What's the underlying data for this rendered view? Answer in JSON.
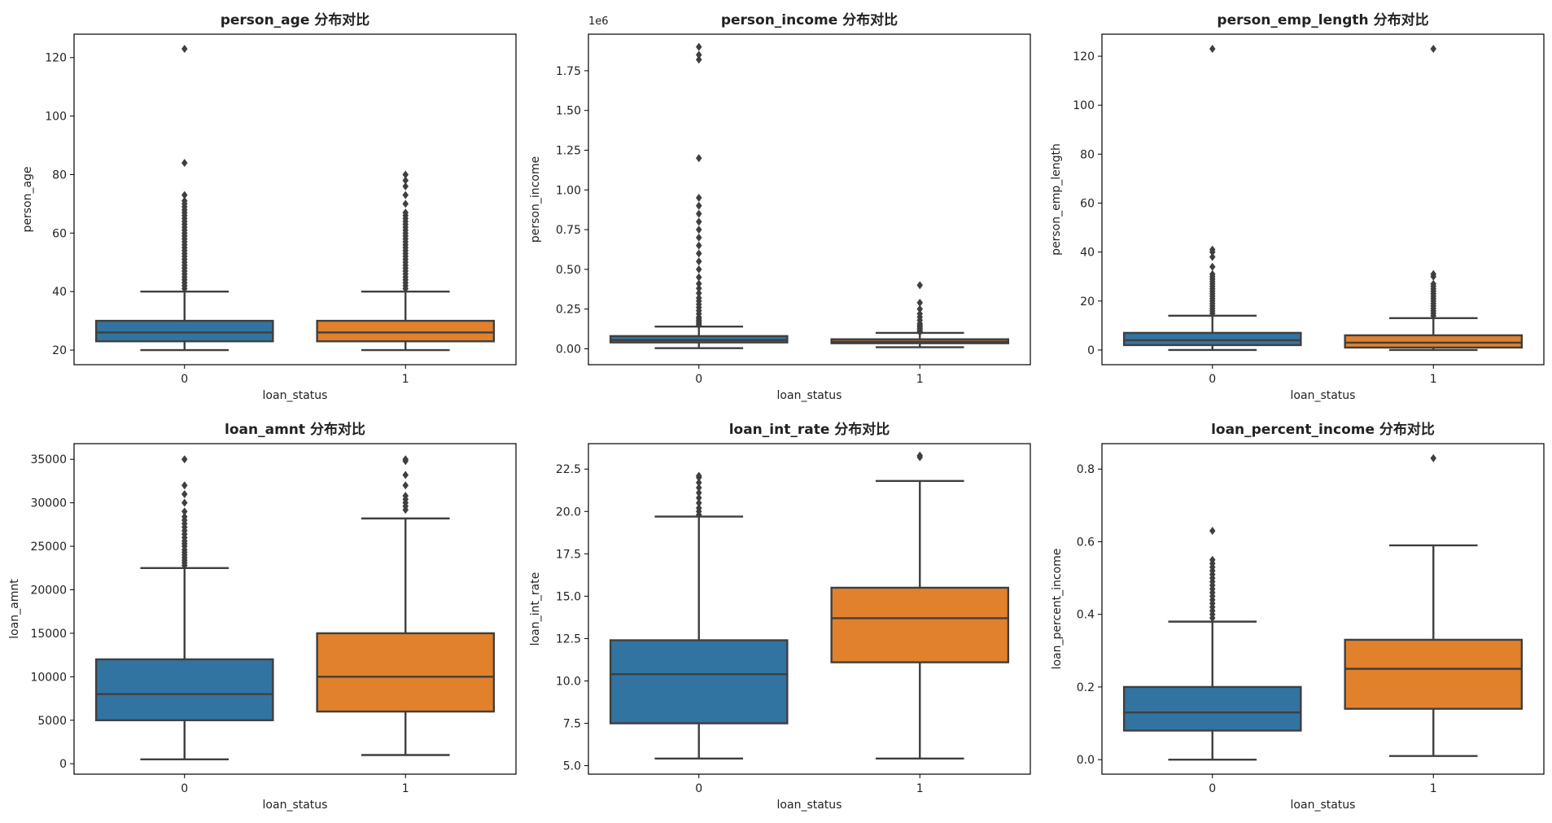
{
  "figure": {
    "colors": {
      "status_0": "#3274a1",
      "status_1": "#e1812c",
      "line": "#3f3f3f"
    }
  },
  "chart_data": [
    {
      "type": "box",
      "title": "person_age 分布对比",
      "xlabel": "loan_status",
      "ylabel": "person_age",
      "categories": [
        "0",
        "1"
      ],
      "ylim": [
        15,
        128
      ],
      "yticks": [
        20,
        40,
        60,
        80,
        100,
        120
      ],
      "ytick_labels": [
        "20",
        "40",
        "60",
        "80",
        "100",
        "120"
      ],
      "offset_label": "",
      "boxes": [
        {
          "whisker_low": 20,
          "q1": 23,
          "median": 26,
          "q3": 30,
          "whisker_high": 40,
          "outliers": [
            41,
            42,
            43,
            44,
            45,
            46,
            47,
            48,
            49,
            50,
            51,
            52,
            53,
            54,
            55,
            56,
            57,
            58,
            59,
            60,
            61,
            62,
            63,
            64,
            65,
            66,
            67,
            68,
            69,
            70,
            71,
            73,
            84,
            123
          ]
        },
        {
          "whisker_low": 20,
          "q1": 23,
          "median": 26,
          "q3": 30,
          "whisker_high": 40,
          "outliers": [
            41,
            42,
            43,
            44,
            45,
            46,
            47,
            48,
            49,
            50,
            51,
            52,
            53,
            54,
            55,
            56,
            57,
            58,
            59,
            60,
            61,
            62,
            63,
            64,
            65,
            66,
            67,
            70,
            73,
            76,
            78,
            80
          ]
        }
      ]
    },
    {
      "type": "box",
      "title": "person_income 分布对比",
      "xlabel": "loan_status",
      "ylabel": "person_income",
      "categories": [
        "0",
        "1"
      ],
      "ylim": [
        -0.1,
        1.98
      ],
      "yticks": [
        0,
        0.25,
        0.5,
        0.75,
        1.0,
        1.25,
        1.5,
        1.75
      ],
      "ytick_labels": [
        "0.00",
        "0.25",
        "0.50",
        "0.75",
        "1.00",
        "1.25",
        "1.50",
        "1.75"
      ],
      "offset_label": "1e6",
      "boxes": [
        {
          "whisker_low": 0.004,
          "q1": 0.04,
          "median": 0.055,
          "q3": 0.08,
          "whisker_high": 0.14,
          "outliers": [
            0.15,
            0.16,
            0.17,
            0.18,
            0.19,
            0.2,
            0.22,
            0.24,
            0.26,
            0.28,
            0.3,
            0.32,
            0.35,
            0.38,
            0.41,
            0.45,
            0.5,
            0.55,
            0.6,
            0.65,
            0.7,
            0.75,
            0.8,
            0.85,
            0.9,
            0.95,
            1.2,
            1.82,
            1.85,
            1.9
          ]
        },
        {
          "whisker_low": 0.01,
          "q1": 0.035,
          "median": 0.045,
          "q3": 0.06,
          "whisker_high": 0.1,
          "outliers": [
            0.105,
            0.11,
            0.12,
            0.13,
            0.14,
            0.15,
            0.16,
            0.18,
            0.2,
            0.22,
            0.25,
            0.29,
            0.4
          ]
        }
      ]
    },
    {
      "type": "box",
      "title": "person_emp_length 分布对比",
      "xlabel": "loan_status",
      "ylabel": "person_emp_length",
      "categories": [
        "0",
        "1"
      ],
      "ylim": [
        -6,
        129
      ],
      "yticks": [
        0,
        20,
        40,
        60,
        80,
        100,
        120
      ],
      "ytick_labels": [
        "0",
        "20",
        "40",
        "60",
        "80",
        "100",
        "120"
      ],
      "offset_label": "",
      "boxes": [
        {
          "whisker_low": 0,
          "q1": 2,
          "median": 4,
          "q3": 7,
          "whisker_high": 14,
          "outliers": [
            15,
            16,
            17,
            18,
            19,
            20,
            21,
            22,
            23,
            24,
            25,
            26,
            27,
            28,
            29,
            30,
            31,
            34,
            38,
            40,
            41,
            123
          ]
        },
        {
          "whisker_low": 0,
          "q1": 1,
          "median": 3,
          "q3": 6,
          "whisker_high": 13,
          "outliers": [
            14,
            15,
            16,
            17,
            18,
            19,
            20,
            21,
            22,
            23,
            24,
            25,
            26,
            27,
            30,
            31,
            123
          ]
        }
      ]
    },
    {
      "type": "box",
      "title": "loan_amnt 分布对比",
      "xlabel": "loan_status",
      "ylabel": "loan_amnt",
      "categories": [
        "0",
        "1"
      ],
      "ylim": [
        -1200,
        36800
      ],
      "yticks": [
        0,
        5000,
        10000,
        15000,
        20000,
        25000,
        30000,
        35000
      ],
      "ytick_labels": [
        "0",
        "5000",
        "10000",
        "15000",
        "20000",
        "25000",
        "30000",
        "35000"
      ],
      "offset_label": "",
      "boxes": [
        {
          "whisker_low": 500,
          "q1": 5000,
          "median": 8000,
          "q3": 12000,
          "whisker_high": 22500,
          "outliers": [
            22800,
            23100,
            23400,
            23700,
            24000,
            24300,
            24600,
            25000,
            25300,
            25600,
            26000,
            26400,
            26800,
            27200,
            27600,
            28000,
            28400,
            29000,
            30000,
            31000,
            32000,
            35000
          ]
        },
        {
          "whisker_low": 1000,
          "q1": 6000,
          "median": 10000,
          "q3": 15000,
          "whisker_high": 28200,
          "outliers": [
            29200,
            29600,
            30000,
            30400,
            30800,
            32000,
            33200,
            34800,
            35000
          ]
        }
      ]
    },
    {
      "type": "box",
      "title": "loan_int_rate 分布对比",
      "xlabel": "loan_status",
      "ylabel": "loan_int_rate",
      "categories": [
        "0",
        "1"
      ],
      "ylim": [
        4.5,
        24.0
      ],
      "yticks": [
        5.0,
        7.5,
        10.0,
        12.5,
        15.0,
        17.5,
        20.0,
        22.5
      ],
      "ytick_labels": [
        "5.0",
        "7.5",
        "10.0",
        "12.5",
        "15.0",
        "17.5",
        "20.0",
        "22.5"
      ],
      "offset_label": "",
      "boxes": [
        {
          "whisker_low": 5.42,
          "q1": 7.5,
          "median": 10.4,
          "q3": 12.4,
          "whisker_high": 19.7,
          "outliers": [
            19.8,
            20.0,
            20.2,
            20.5,
            20.8,
            21.1,
            21.4,
            21.7,
            22.0,
            22.1
          ]
        },
        {
          "whisker_low": 5.42,
          "q1": 11.1,
          "median": 13.7,
          "q3": 15.5,
          "whisker_high": 21.8,
          "outliers": [
            23.2,
            23.3
          ]
        }
      ]
    },
    {
      "type": "box",
      "title": "loan_percent_income 分布对比",
      "xlabel": "loan_status",
      "ylabel": "loan_percent_income",
      "categories": [
        "0",
        "1"
      ],
      "ylim": [
        -0.04,
        0.87
      ],
      "yticks": [
        0.0,
        0.2,
        0.4,
        0.6,
        0.8
      ],
      "ytick_labels": [
        "0.0",
        "0.2",
        "0.4",
        "0.6",
        "0.8"
      ],
      "offset_label": "",
      "boxes": [
        {
          "whisker_low": 0.0,
          "q1": 0.08,
          "median": 0.13,
          "q3": 0.2,
          "whisker_high": 0.38,
          "outliers": [
            0.39,
            0.4,
            0.41,
            0.42,
            0.43,
            0.44,
            0.45,
            0.46,
            0.47,
            0.48,
            0.49,
            0.5,
            0.51,
            0.52,
            0.53,
            0.54,
            0.55,
            0.63
          ]
        },
        {
          "whisker_low": 0.01,
          "q1": 0.14,
          "median": 0.25,
          "q3": 0.33,
          "whisker_high": 0.59,
          "outliers": [
            0.83
          ]
        }
      ]
    }
  ]
}
